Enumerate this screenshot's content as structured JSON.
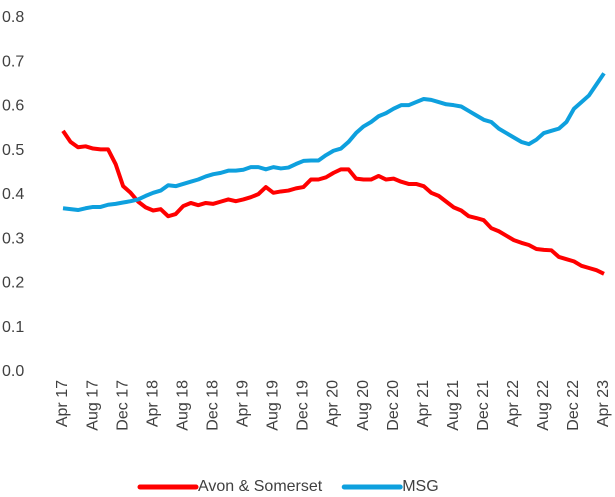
{
  "chart_data": {
    "type": "line",
    "categories": [
      "Apr 17",
      null,
      null,
      null,
      "Aug 17",
      null,
      null,
      null,
      "Dec 17",
      null,
      null,
      null,
      "Apr 18",
      null,
      null,
      null,
      "Aug 18",
      null,
      null,
      null,
      "Dec 18",
      null,
      null,
      null,
      "Apr 19",
      null,
      null,
      null,
      "Aug 19",
      null,
      null,
      null,
      "Dec 19",
      null,
      null,
      null,
      "Apr 20",
      null,
      null,
      null,
      "Aug 20",
      null,
      null,
      null,
      "Dec 20",
      null,
      null,
      null,
      "Apr 21",
      null,
      null,
      null,
      "Aug 21",
      null,
      null,
      null,
      "Dec 21",
      null,
      null,
      null,
      "Apr 22",
      null,
      null,
      null,
      "Aug 22",
      null,
      null,
      null,
      "Dec 22",
      null,
      null,
      null,
      "Apr 23"
    ],
    "series": [
      {
        "name": "Avon & Somerset",
        "color": "#ff0000",
        "values": [
          0.545,
          0.52,
          0.508,
          0.51,
          0.505,
          0.503,
          0.503,
          0.47,
          0.42,
          0.405,
          0.385,
          0.372,
          0.365,
          0.368,
          0.352,
          0.357,
          0.375,
          0.382,
          0.377,
          0.382,
          0.38,
          0.385,
          0.39,
          0.386,
          0.39,
          0.395,
          0.402,
          0.418,
          0.405,
          0.408,
          0.41,
          0.415,
          0.418,
          0.435,
          0.435,
          0.44,
          0.45,
          0.458,
          0.458,
          0.437,
          0.435,
          0.435,
          0.443,
          0.435,
          0.437,
          0.43,
          0.425,
          0.425,
          0.42,
          0.405,
          0.398,
          0.385,
          0.372,
          0.365,
          0.352,
          0.348,
          0.343,
          0.325,
          0.318,
          0.308,
          0.298,
          0.292,
          0.287,
          0.278,
          0.276,
          0.275,
          0.26,
          0.255,
          0.25,
          0.24,
          0.235,
          0.23,
          0.222
        ]
      },
      {
        "name": "MSG",
        "color": "#0ea0de",
        "values": [
          0.37,
          0.368,
          0.366,
          0.37,
          0.373,
          0.373,
          0.378,
          0.38,
          0.383,
          0.386,
          0.39,
          0.398,
          0.405,
          0.41,
          0.422,
          0.42,
          0.425,
          0.43,
          0.435,
          0.442,
          0.447,
          0.45,
          0.455,
          0.455,
          0.457,
          0.463,
          0.463,
          0.458,
          0.463,
          0.46,
          0.462,
          0.47,
          0.477,
          0.478,
          0.478,
          0.49,
          0.5,
          0.505,
          0.52,
          0.54,
          0.555,
          0.565,
          0.578,
          0.585,
          0.595,
          0.603,
          0.603,
          0.61,
          0.617,
          0.615,
          0.61,
          0.605,
          0.603,
          0.6,
          0.59,
          0.58,
          0.57,
          0.565,
          0.55,
          0.54,
          0.53,
          0.52,
          0.515,
          0.525,
          0.54,
          0.545,
          0.55,
          0.565,
          0.595,
          0.61,
          0.625,
          0.65,
          0.675
        ]
      }
    ],
    "ylim": [
      0,
      0.8
    ],
    "yticks": [
      {
        "value": 0,
        "label": "0.0"
      },
      0.1,
      0.2,
      0.3,
      0.4,
      0.5,
      0.6,
      0.7,
      0.8
    ],
    "grid": false,
    "legend": "bottom"
  }
}
